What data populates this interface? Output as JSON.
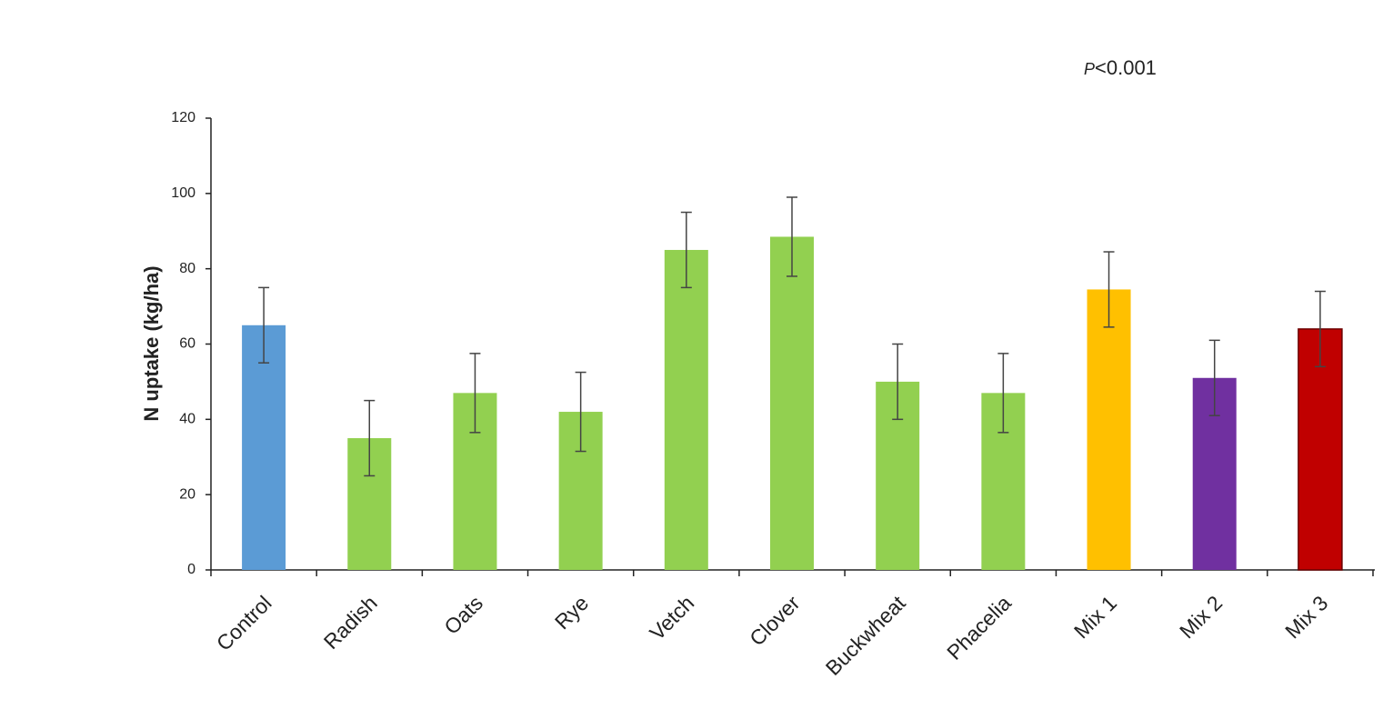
{
  "chart_data": {
    "type": "bar",
    "annotation": [
      "P",
      "<0.001"
    ],
    "ylabel": "N uptake (kg/ha)",
    "categories": [
      "Control",
      "Radish",
      "Oats",
      "Rye",
      "Vetch",
      "Clover",
      "Buckwheat",
      "Phacelia",
      "Mix 1",
      "Mix 2",
      "Mix 3"
    ],
    "values": [
      65,
      35,
      47,
      42,
      85,
      88.5,
      50,
      47,
      74.5,
      51,
      64
    ],
    "errors": [
      10,
      10,
      10.5,
      10.5,
      10,
      10.5,
      10,
      10.5,
      10,
      10,
      10
    ],
    "colors": [
      "#5b9bd5",
      "#92d050",
      "#92d050",
      "#92d050",
      "#92d050",
      "#92d050",
      "#92d050",
      "#92d050",
      "#ffc000",
      "#7030a0",
      "#c00000"
    ],
    "ylim": [
      0,
      120
    ],
    "yticks": [
      0,
      20,
      40,
      60,
      80,
      100,
      120
    ],
    "grid": false
  }
}
